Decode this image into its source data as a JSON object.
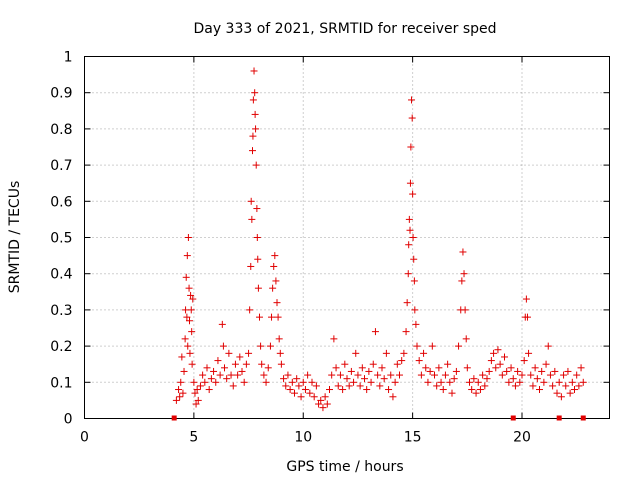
{
  "chart_data": {
    "type": "scatter",
    "title": "Day 333 of 2021, SRMTID for receiver sped",
    "xlabel": "GPS time / hours",
    "ylabel": "SRMTID / TECUs",
    "xlim": [
      0,
      24
    ],
    "ylim": [
      0,
      1
    ],
    "x_ticks": [
      0,
      5,
      10,
      15,
      20
    ],
    "y_ticks": [
      0,
      0.1,
      0.2,
      0.3,
      0.4,
      0.5,
      0.6,
      0.7,
      0.8,
      0.9,
      1
    ],
    "grid": true,
    "marker": "+",
    "color": "#e00000",
    "gap_markers_x": [
      4.1,
      19.6,
      21.7,
      22.8
    ],
    "peaks": [
      {
        "x": 4.75,
        "y": 0.5
      },
      {
        "x": 7.75,
        "y": 0.96
      },
      {
        "x": 8.7,
        "y": 0.45
      },
      {
        "x": 14.95,
        "y": 0.88
      },
      {
        "x": 17.3,
        "y": 0.46
      },
      {
        "x": 20.2,
        "y": 0.33
      }
    ],
    "series": [
      {
        "name": "SRMTID",
        "points": [
          [
            4.2,
            0.05
          ],
          [
            4.3,
            0.08
          ],
          [
            4.35,
            0.06
          ],
          [
            4.4,
            0.1
          ],
          [
            4.45,
            0.17
          ],
          [
            4.5,
            0.07
          ],
          [
            4.55,
            0.13
          ],
          [
            4.6,
            0.22
          ],
          [
            4.62,
            0.3
          ],
          [
            4.65,
            0.39
          ],
          [
            4.68,
            0.28
          ],
          [
            4.7,
            0.45
          ],
          [
            4.72,
            0.2
          ],
          [
            4.75,
            0.5
          ],
          [
            4.78,
            0.36
          ],
          [
            4.8,
            0.27
          ],
          [
            4.82,
            0.18
          ],
          [
            4.85,
            0.34
          ],
          [
            4.88,
            0.3
          ],
          [
            4.9,
            0.24
          ],
          [
            4.92,
            0.15
          ],
          [
            4.95,
            0.33
          ],
          [
            5.0,
            0.1
          ],
          [
            5.05,
            0.07
          ],
          [
            5.1,
            0.04
          ],
          [
            5.15,
            0.08
          ],
          [
            5.2,
            0.05
          ],
          [
            5.3,
            0.09
          ],
          [
            5.4,
            0.12
          ],
          [
            5.5,
            0.1
          ],
          [
            5.6,
            0.14
          ],
          [
            5.7,
            0.08
          ],
          [
            5.8,
            0.11
          ],
          [
            5.9,
            0.13
          ],
          [
            6.0,
            0.1
          ],
          [
            6.1,
            0.16
          ],
          [
            6.2,
            0.12
          ],
          [
            6.3,
            0.26
          ],
          [
            6.35,
            0.2
          ],
          [
            6.4,
            0.14
          ],
          [
            6.5,
            0.11
          ],
          [
            6.6,
            0.18
          ],
          [
            6.7,
            0.12
          ],
          [
            6.8,
            0.09
          ],
          [
            6.9,
            0.15
          ],
          [
            7.0,
            0.12
          ],
          [
            7.1,
            0.17
          ],
          [
            7.2,
            0.13
          ],
          [
            7.3,
            0.1
          ],
          [
            7.4,
            0.15
          ],
          [
            7.5,
            0.18
          ],
          [
            7.55,
            0.3
          ],
          [
            7.6,
            0.42
          ],
          [
            7.62,
            0.6
          ],
          [
            7.65,
            0.55
          ],
          [
            7.68,
            0.74
          ],
          [
            7.7,
            0.78
          ],
          [
            7.72,
            0.88
          ],
          [
            7.75,
            0.96
          ],
          [
            7.78,
            0.9
          ],
          [
            7.8,
            0.84
          ],
          [
            7.82,
            0.8
          ],
          [
            7.85,
            0.7
          ],
          [
            7.88,
            0.58
          ],
          [
            7.9,
            0.5
          ],
          [
            7.92,
            0.44
          ],
          [
            7.95,
            0.36
          ],
          [
            8.0,
            0.28
          ],
          [
            8.05,
            0.2
          ],
          [
            8.1,
            0.15
          ],
          [
            8.2,
            0.12
          ],
          [
            8.3,
            0.1
          ],
          [
            8.4,
            0.14
          ],
          [
            8.5,
            0.2
          ],
          [
            8.55,
            0.28
          ],
          [
            8.6,
            0.36
          ],
          [
            8.65,
            0.42
          ],
          [
            8.7,
            0.45
          ],
          [
            8.75,
            0.38
          ],
          [
            8.8,
            0.32
          ],
          [
            8.85,
            0.28
          ],
          [
            8.9,
            0.22
          ],
          [
            8.95,
            0.18
          ],
          [
            9.0,
            0.15
          ],
          [
            9.1,
            0.11
          ],
          [
            9.2,
            0.09
          ],
          [
            9.3,
            0.12
          ],
          [
            9.4,
            0.08
          ],
          [
            9.5,
            0.1
          ],
          [
            9.6,
            0.07
          ],
          [
            9.7,
            0.11
          ],
          [
            9.8,
            0.09
          ],
          [
            9.9,
            0.06
          ],
          [
            10.0,
            0.1
          ],
          [
            10.1,
            0.08
          ],
          [
            10.2,
            0.12
          ],
          [
            10.3,
            0.07
          ],
          [
            10.4,
            0.1
          ],
          [
            10.5,
            0.06
          ],
          [
            10.6,
            0.09
          ],
          [
            10.7,
            0.04
          ],
          [
            10.8,
            0.05
          ],
          [
            10.9,
            0.03
          ],
          [
            11.0,
            0.06
          ],
          [
            11.1,
            0.04
          ],
          [
            11.2,
            0.08
          ],
          [
            11.3,
            0.12
          ],
          [
            11.4,
            0.22
          ],
          [
            11.5,
            0.14
          ],
          [
            11.6,
            0.09
          ],
          [
            11.7,
            0.12
          ],
          [
            11.8,
            0.08
          ],
          [
            11.9,
            0.15
          ],
          [
            12.0,
            0.11
          ],
          [
            12.1,
            0.09
          ],
          [
            12.2,
            0.13
          ],
          [
            12.3,
            0.1
          ],
          [
            12.4,
            0.18
          ],
          [
            12.5,
            0.12
          ],
          [
            12.6,
            0.09
          ],
          [
            12.7,
            0.14
          ],
          [
            12.8,
            0.11
          ],
          [
            12.9,
            0.08
          ],
          [
            13.0,
            0.13
          ],
          [
            13.1,
            0.1
          ],
          [
            13.2,
            0.15
          ],
          [
            13.3,
            0.24
          ],
          [
            13.4,
            0.12
          ],
          [
            13.5,
            0.09
          ],
          [
            13.6,
            0.14
          ],
          [
            13.7,
            0.11
          ],
          [
            13.8,
            0.18
          ],
          [
            13.9,
            0.08
          ],
          [
            14.0,
            0.12
          ],
          [
            14.1,
            0.06
          ],
          [
            14.2,
            0.1
          ],
          [
            14.3,
            0.15
          ],
          [
            14.4,
            0.12
          ],
          [
            14.5,
            0.16
          ],
          [
            14.6,
            0.18
          ],
          [
            14.7,
            0.24
          ],
          [
            14.75,
            0.32
          ],
          [
            14.8,
            0.4
          ],
          [
            14.82,
            0.48
          ],
          [
            14.85,
            0.55
          ],
          [
            14.88,
            0.52
          ],
          [
            14.9,
            0.65
          ],
          [
            14.92,
            0.75
          ],
          [
            14.95,
            0.88
          ],
          [
            14.98,
            0.83
          ],
          [
            15.0,
            0.62
          ],
          [
            15.02,
            0.5
          ],
          [
            15.05,
            0.44
          ],
          [
            15.08,
            0.38
          ],
          [
            15.1,
            0.3
          ],
          [
            15.15,
            0.26
          ],
          [
            15.2,
            0.2
          ],
          [
            15.3,
            0.16
          ],
          [
            15.4,
            0.12
          ],
          [
            15.5,
            0.18
          ],
          [
            15.6,
            0.14
          ],
          [
            15.7,
            0.1
          ],
          [
            15.8,
            0.13
          ],
          [
            15.9,
            0.2
          ],
          [
            16.0,
            0.12
          ],
          [
            16.1,
            0.09
          ],
          [
            16.2,
            0.14
          ],
          [
            16.3,
            0.1
          ],
          [
            16.4,
            0.08
          ],
          [
            16.5,
            0.12
          ],
          [
            16.6,
            0.15
          ],
          [
            16.7,
            0.1
          ],
          [
            16.8,
            0.07
          ],
          [
            16.9,
            0.11
          ],
          [
            17.0,
            0.13
          ],
          [
            17.1,
            0.2
          ],
          [
            17.2,
            0.3
          ],
          [
            17.25,
            0.38
          ],
          [
            17.3,
            0.46
          ],
          [
            17.35,
            0.4
          ],
          [
            17.4,
            0.3
          ],
          [
            17.45,
            0.22
          ],
          [
            17.5,
            0.14
          ],
          [
            17.6,
            0.1
          ],
          [
            17.7,
            0.08
          ],
          [
            17.8,
            0.11
          ],
          [
            17.9,
            0.07
          ],
          [
            18.0,
            0.1
          ],
          [
            18.1,
            0.08
          ],
          [
            18.2,
            0.12
          ],
          [
            18.3,
            0.09
          ],
          [
            18.4,
            0.11
          ],
          [
            18.5,
            0.13
          ],
          [
            18.6,
            0.16
          ],
          [
            18.7,
            0.18
          ],
          [
            18.8,
            0.14
          ],
          [
            18.9,
            0.19
          ],
          [
            19.0,
            0.15
          ],
          [
            19.1,
            0.12
          ],
          [
            19.2,
            0.17
          ],
          [
            19.3,
            0.13
          ],
          [
            19.4,
            0.1
          ],
          [
            19.5,
            0.14
          ],
          [
            19.6,
            0.11
          ],
          [
            19.7,
            0.09
          ],
          [
            19.8,
            0.13
          ],
          [
            19.9,
            0.1
          ],
          [
            20.0,
            0.12
          ],
          [
            20.1,
            0.16
          ],
          [
            20.15,
            0.28
          ],
          [
            20.2,
            0.33
          ],
          [
            20.25,
            0.28
          ],
          [
            20.3,
            0.18
          ],
          [
            20.4,
            0.12
          ],
          [
            20.5,
            0.09
          ],
          [
            20.6,
            0.14
          ],
          [
            20.7,
            0.11
          ],
          [
            20.8,
            0.08
          ],
          [
            20.9,
            0.13
          ],
          [
            21.0,
            0.1
          ],
          [
            21.1,
            0.15
          ],
          [
            21.2,
            0.2
          ],
          [
            21.3,
            0.12
          ],
          [
            21.4,
            0.09
          ],
          [
            21.5,
            0.13
          ],
          [
            21.6,
            0.07
          ],
          [
            21.7,
            0.1
          ],
          [
            21.8,
            0.06
          ],
          [
            21.9,
            0.12
          ],
          [
            22.0,
            0.09
          ],
          [
            22.1,
            0.13
          ],
          [
            22.2,
            0.07
          ],
          [
            22.3,
            0.1
          ],
          [
            22.4,
            0.08
          ],
          [
            22.5,
            0.12
          ],
          [
            22.6,
            0.09
          ],
          [
            22.7,
            0.14
          ],
          [
            22.8,
            0.1
          ]
        ]
      }
    ]
  }
}
